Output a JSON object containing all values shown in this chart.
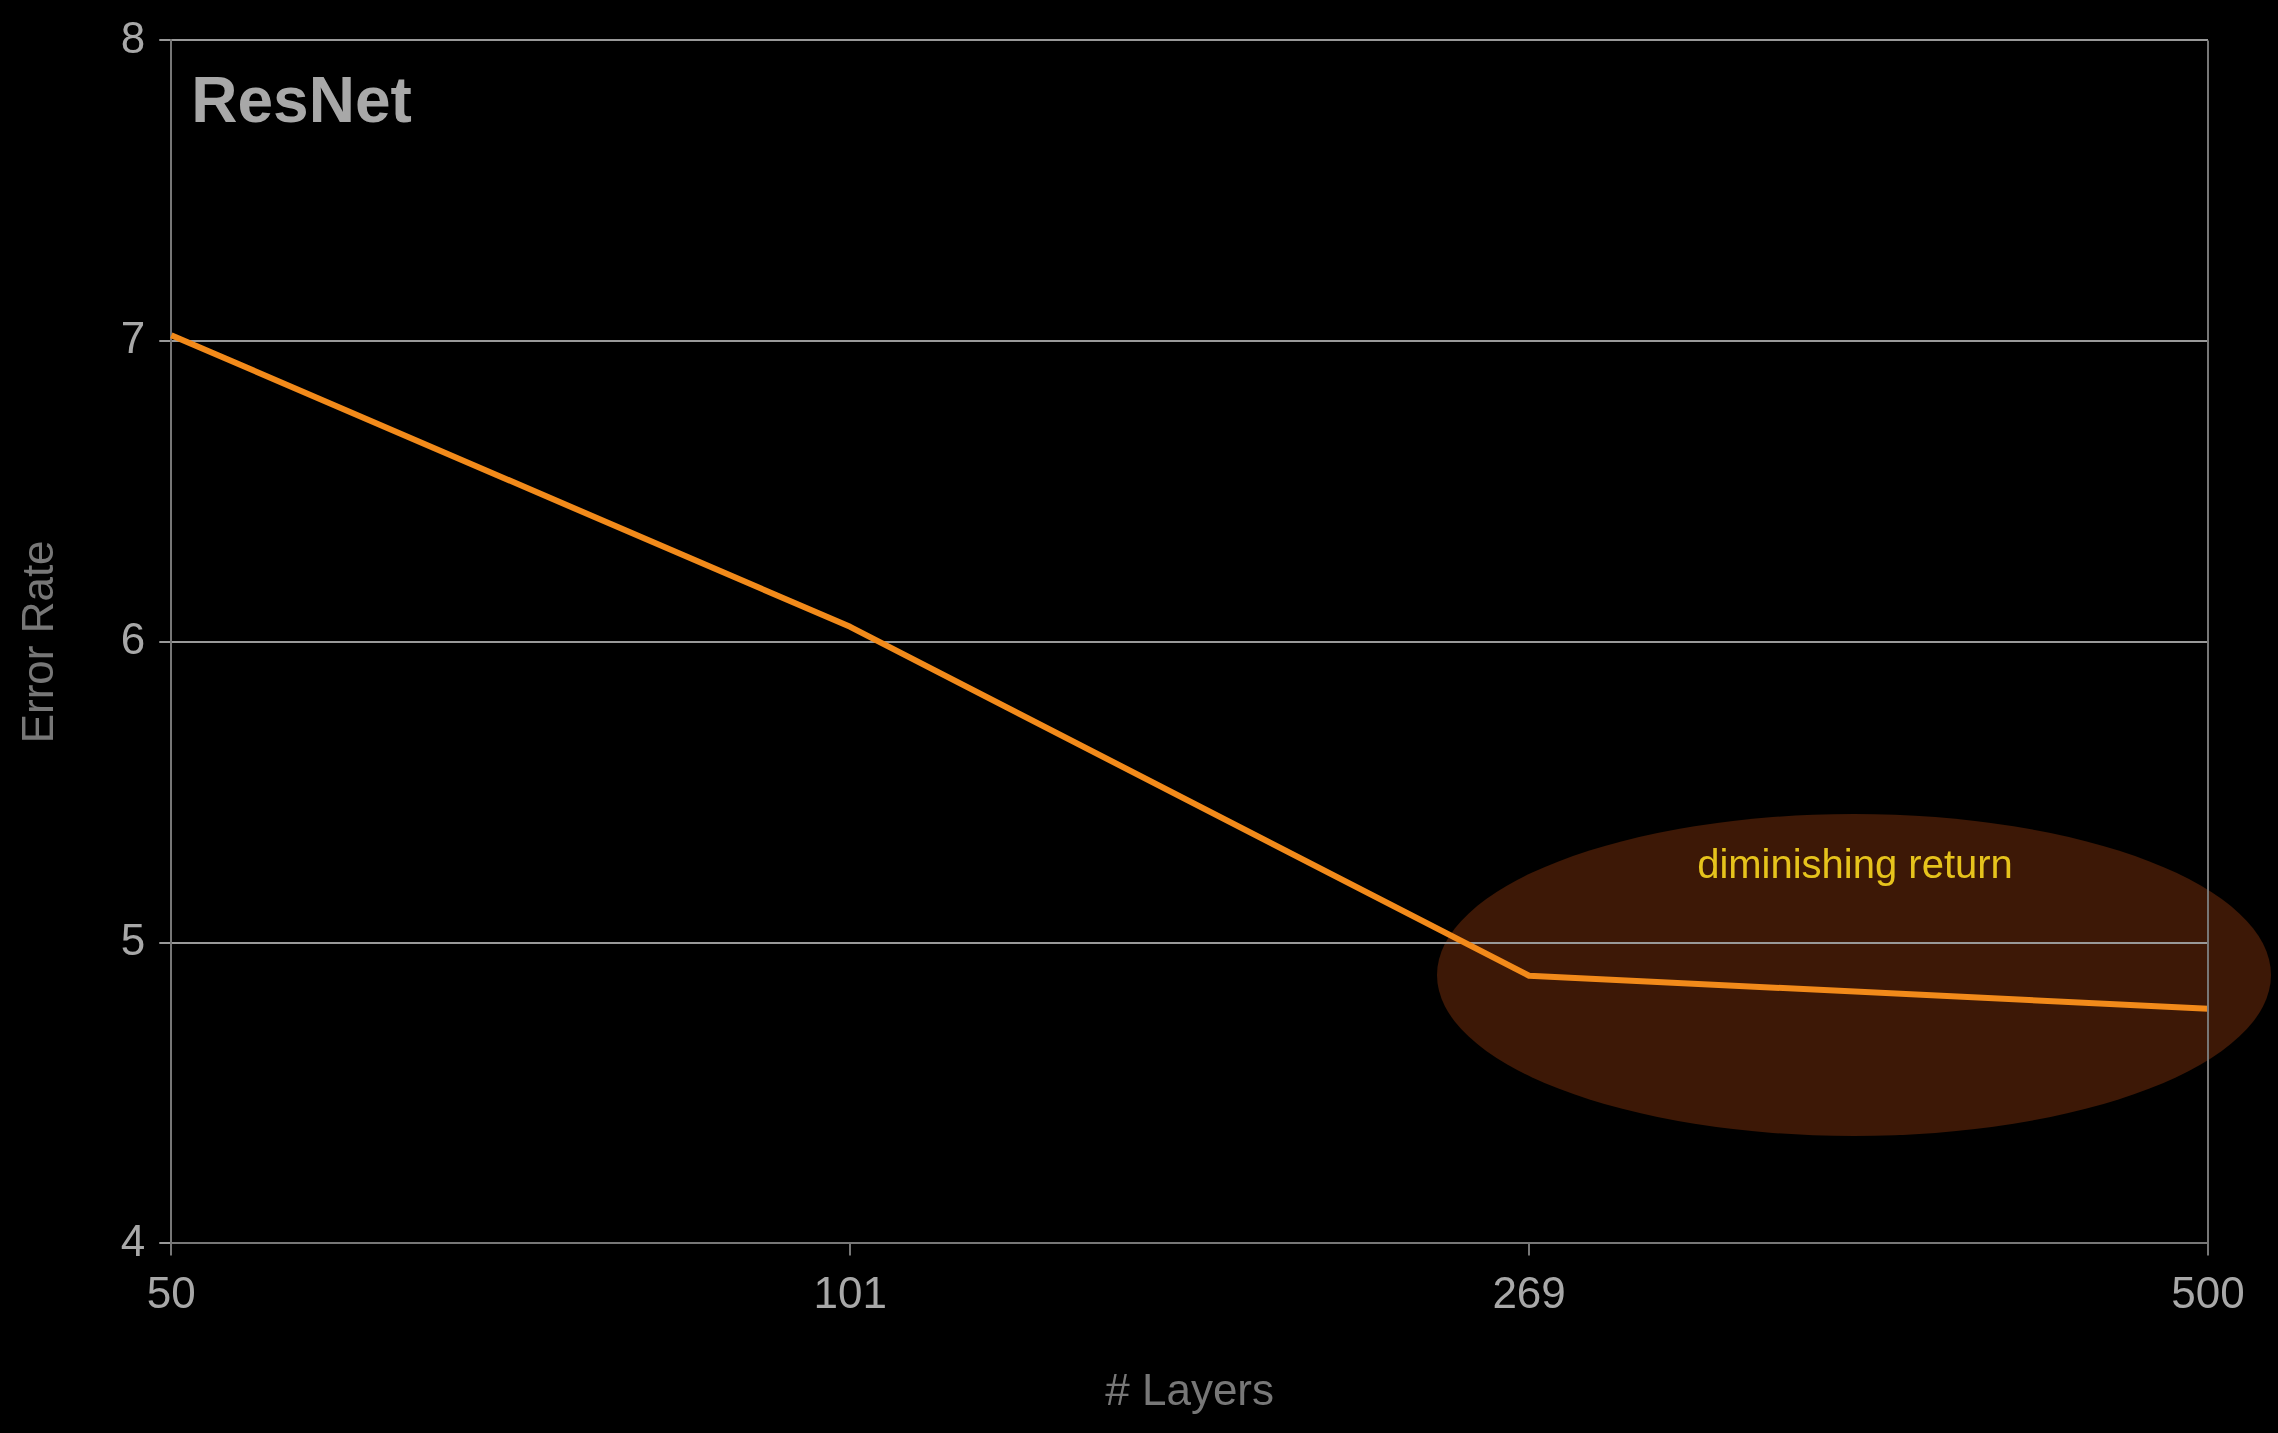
{
  "chart_data": {
    "type": "line",
    "title": "ResNet",
    "xlabel": "# Layers",
    "ylabel": "Error Rate",
    "categories": [
      "50",
      "101",
      "269",
      "500"
    ],
    "series": [
      {
        "color": "#f28a1a",
        "values": [
          7.02,
          6.05,
          4.89,
          4.78
        ]
      }
    ],
    "ylim": [
      4,
      8
    ],
    "yticks": [
      4,
      5,
      6,
      7,
      8
    ],
    "grid": "y",
    "legend": false,
    "marker": "none",
    "line_style": "solid",
    "annotations": [
      "diminishing return"
    ]
  }
}
